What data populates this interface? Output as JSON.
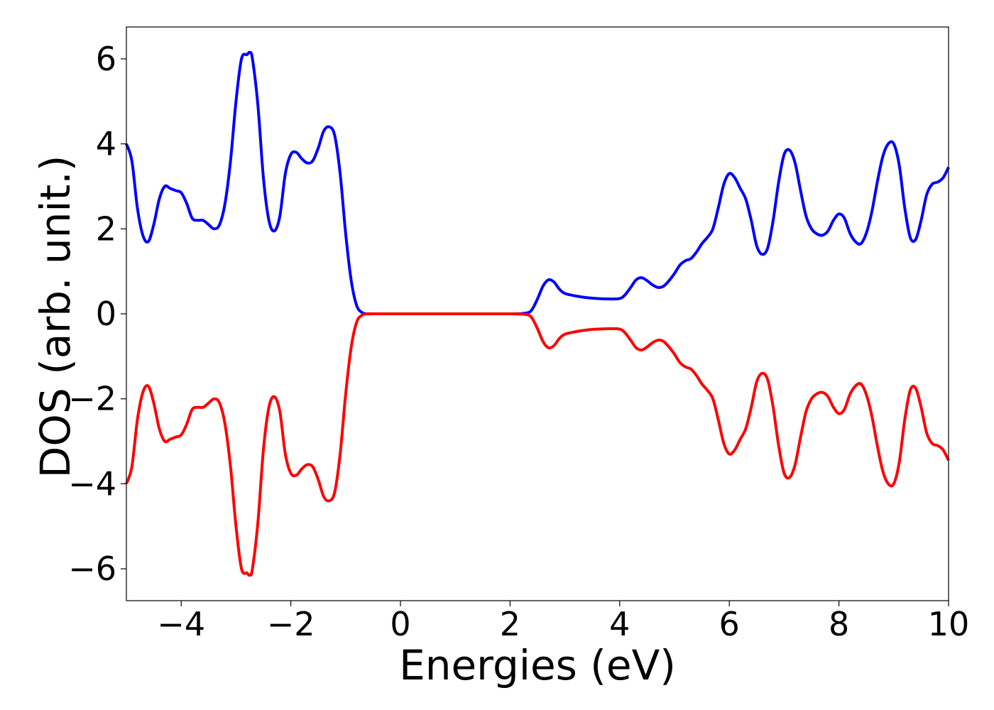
{
  "chart_data": {
    "type": "line",
    "title": "",
    "xlabel": "Energies (eV)",
    "ylabel": "DOS (arb. unit.)",
    "xlim": [
      -5,
      10
    ],
    "ylim": [
      -6.75,
      6.75
    ],
    "xticks": [
      -4,
      -2,
      0,
      2,
      4,
      6,
      8,
      10
    ],
    "yticks": [
      -6,
      -4,
      -2,
      0,
      2,
      4,
      6
    ],
    "xtick_labels": [
      "−4",
      "−2",
      "0",
      "2",
      "4",
      "6",
      "8",
      "10"
    ],
    "ytick_labels": [
      "−6",
      "−4",
      "−2",
      "0",
      "2",
      "4",
      "6"
    ],
    "grid": false,
    "legend": "none",
    "series": [
      {
        "color": "#0000ff",
        "x": [
          -5.0,
          -4.9,
          -4.8,
          -4.7,
          -4.6,
          -4.5,
          -4.4,
          -4.3,
          -4.2,
          -4.1,
          -4.0,
          -3.9,
          -3.8,
          -3.7,
          -3.6,
          -3.5,
          -3.4,
          -3.3,
          -3.2,
          -3.1,
          -3.0,
          -2.9,
          -2.8,
          -2.75,
          -2.7,
          -2.6,
          -2.5,
          -2.4,
          -2.3,
          -2.2,
          -2.1,
          -2.0,
          -1.9,
          -1.8,
          -1.7,
          -1.6,
          -1.5,
          -1.4,
          -1.3,
          -1.2,
          -1.1,
          -1.0,
          -0.9,
          -0.8,
          -0.7,
          -0.6,
          -0.5,
          -0.4,
          0.0,
          1.0,
          2.0,
          2.3,
          2.4,
          2.5,
          2.6,
          2.7,
          2.8,
          2.9,
          3.0,
          3.2,
          3.4,
          3.6,
          3.8,
          4.0,
          4.1,
          4.2,
          4.3,
          4.4,
          4.5,
          4.6,
          4.7,
          4.8,
          4.9,
          5.0,
          5.1,
          5.2,
          5.3,
          5.4,
          5.5,
          5.6,
          5.7,
          5.8,
          5.9,
          6.0,
          6.1,
          6.2,
          6.3,
          6.4,
          6.5,
          6.6,
          6.7,
          6.8,
          6.9,
          7.0,
          7.1,
          7.2,
          7.3,
          7.4,
          7.5,
          7.6,
          7.7,
          7.8,
          7.9,
          8.0,
          8.1,
          8.2,
          8.3,
          8.4,
          8.5,
          8.6,
          8.7,
          8.8,
          8.9,
          9.0,
          9.1,
          9.2,
          9.3,
          9.4,
          9.5,
          9.6,
          9.7,
          9.8,
          9.9,
          10.0
        ],
        "y": [
          4.0,
          3.6,
          2.5,
          1.85,
          1.7,
          2.1,
          2.7,
          3.0,
          2.95,
          2.9,
          2.85,
          2.6,
          2.25,
          2.2,
          2.2,
          2.1,
          2.0,
          2.1,
          2.6,
          3.6,
          5.0,
          6.0,
          6.1,
          6.15,
          6.0,
          4.9,
          3.2,
          2.2,
          1.95,
          2.3,
          3.3,
          3.75,
          3.8,
          3.65,
          3.55,
          3.6,
          3.9,
          4.3,
          4.4,
          4.2,
          3.3,
          1.9,
          0.8,
          0.2,
          0.03,
          0.0,
          0.0,
          0.0,
          0.0,
          0.0,
          0.0,
          0.02,
          0.1,
          0.35,
          0.65,
          0.8,
          0.75,
          0.58,
          0.48,
          0.42,
          0.38,
          0.36,
          0.35,
          0.36,
          0.45,
          0.62,
          0.8,
          0.85,
          0.78,
          0.68,
          0.62,
          0.65,
          0.78,
          0.95,
          1.15,
          1.25,
          1.3,
          1.45,
          1.65,
          1.8,
          2.0,
          2.5,
          3.05,
          3.3,
          3.2,
          2.95,
          2.7,
          2.2,
          1.6,
          1.4,
          1.55,
          2.2,
          3.1,
          3.75,
          3.85,
          3.55,
          2.9,
          2.3,
          2.0,
          1.88,
          1.85,
          1.95,
          2.2,
          2.35,
          2.25,
          1.9,
          1.7,
          1.65,
          1.9,
          2.4,
          3.1,
          3.7,
          4.0,
          4.0,
          3.5,
          2.5,
          1.8,
          1.75,
          2.2,
          2.8,
          3.05,
          3.1,
          3.2,
          3.45
        ]
      },
      {
        "color": "#ff0000",
        "x": [
          -5.0,
          -4.9,
          -4.8,
          -4.7,
          -4.6,
          -4.5,
          -4.4,
          -4.3,
          -4.2,
          -4.1,
          -4.0,
          -3.9,
          -3.8,
          -3.7,
          -3.6,
          -3.5,
          -3.4,
          -3.3,
          -3.2,
          -3.1,
          -3.0,
          -2.9,
          -2.8,
          -2.75,
          -2.7,
          -2.6,
          -2.5,
          -2.4,
          -2.3,
          -2.2,
          -2.1,
          -2.0,
          -1.9,
          -1.8,
          -1.7,
          -1.6,
          -1.5,
          -1.4,
          -1.3,
          -1.2,
          -1.1,
          -1.0,
          -0.9,
          -0.8,
          -0.7,
          -0.6,
          -0.5,
          -0.4,
          0.0,
          1.0,
          2.0,
          2.3,
          2.4,
          2.5,
          2.6,
          2.7,
          2.8,
          2.9,
          3.0,
          3.2,
          3.4,
          3.6,
          3.8,
          4.0,
          4.1,
          4.2,
          4.3,
          4.4,
          4.5,
          4.6,
          4.7,
          4.8,
          4.9,
          5.0,
          5.1,
          5.2,
          5.3,
          5.4,
          5.5,
          5.6,
          5.7,
          5.8,
          5.9,
          6.0,
          6.1,
          6.2,
          6.3,
          6.4,
          6.5,
          6.6,
          6.7,
          6.8,
          6.9,
          7.0,
          7.1,
          7.2,
          7.3,
          7.4,
          7.5,
          7.6,
          7.7,
          7.8,
          7.9,
          8.0,
          8.1,
          8.2,
          8.3,
          8.4,
          8.5,
          8.6,
          8.7,
          8.8,
          8.9,
          9.0,
          9.1,
          9.2,
          9.3,
          9.4,
          9.5,
          9.6,
          9.7,
          9.8,
          9.9,
          10.0
        ],
        "y": [
          -4.0,
          -3.6,
          -2.5,
          -1.85,
          -1.7,
          -2.1,
          -2.7,
          -3.0,
          -2.95,
          -2.9,
          -2.85,
          -2.6,
          -2.25,
          -2.2,
          -2.2,
          -2.1,
          -2.0,
          -2.1,
          -2.6,
          -3.6,
          -5.0,
          -6.0,
          -6.1,
          -6.15,
          -6.0,
          -4.9,
          -3.2,
          -2.2,
          -1.95,
          -2.3,
          -3.3,
          -3.75,
          -3.8,
          -3.65,
          -3.55,
          -3.6,
          -3.9,
          -4.3,
          -4.4,
          -4.2,
          -3.3,
          -1.9,
          -0.8,
          -0.2,
          -0.03,
          0.0,
          0.0,
          0.0,
          0.0,
          0.0,
          0.0,
          -0.02,
          -0.1,
          -0.35,
          -0.65,
          -0.8,
          -0.75,
          -0.58,
          -0.48,
          -0.42,
          -0.38,
          -0.36,
          -0.35,
          -0.36,
          -0.45,
          -0.62,
          -0.8,
          -0.85,
          -0.78,
          -0.68,
          -0.62,
          -0.65,
          -0.78,
          -0.95,
          -1.15,
          -1.25,
          -1.3,
          -1.45,
          -1.65,
          -1.8,
          -2.0,
          -2.5,
          -3.05,
          -3.3,
          -3.2,
          -2.95,
          -2.7,
          -2.2,
          -1.6,
          -1.4,
          -1.55,
          -2.2,
          -3.1,
          -3.75,
          -3.85,
          -3.55,
          -2.9,
          -2.3,
          -2.0,
          -1.88,
          -1.85,
          -1.95,
          -2.2,
          -2.35,
          -2.25,
          -1.9,
          -1.7,
          -1.65,
          -1.9,
          -2.4,
          -3.1,
          -3.7,
          -4.0,
          -4.0,
          -3.5,
          -2.5,
          -1.8,
          -1.75,
          -2.2,
          -2.8,
          -3.05,
          -3.1,
          -3.2,
          -3.45
        ]
      }
    ]
  }
}
